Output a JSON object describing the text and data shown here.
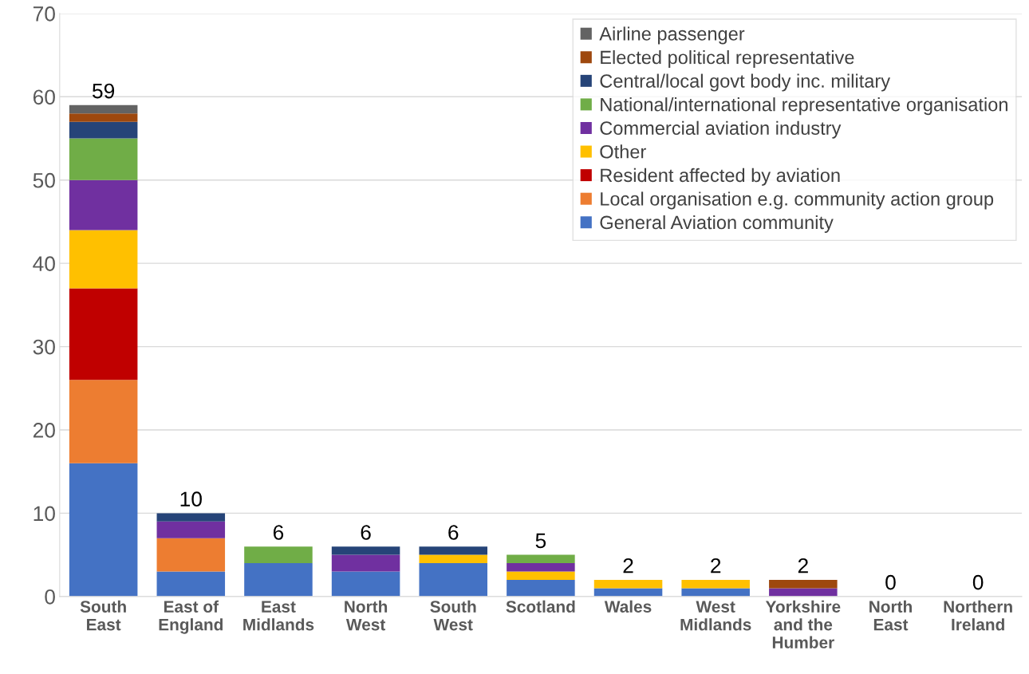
{
  "chart_data": {
    "type": "bar",
    "stacked": true,
    "categories": [
      "South\nEast",
      "East of\nEngland",
      "East\nMidlands",
      "North\nWest",
      "South\nWest",
      "Scotland",
      "Wales",
      "West\nMidlands",
      "Yorkshire\nand the\nHumber",
      "North\nEast",
      "Northern\nIreland"
    ],
    "series": [
      {
        "name": "General Aviation community",
        "color": "#4472c4",
        "values": [
          16,
          3,
          4,
          3,
          4,
          2,
          1,
          1,
          0,
          0,
          0
        ]
      },
      {
        "name": "Local organisation e.g. community action group",
        "color": "#ed7d31",
        "values": [
          10,
          4,
          0,
          0,
          0,
          0,
          0,
          0,
          0,
          0,
          0
        ]
      },
      {
        "name": "Resident affected by aviation",
        "color": "#c00000",
        "values": [
          11,
          0,
          0,
          0,
          0,
          0,
          0,
          0,
          0,
          0,
          0
        ]
      },
      {
        "name": "Other",
        "color": "#ffc000",
        "values": [
          7,
          0,
          0,
          0,
          1,
          1,
          1,
          1,
          0,
          0,
          0
        ]
      },
      {
        "name": "Commercial aviation industry",
        "color": "#7030a0",
        "values": [
          6,
          2,
          0,
          2,
          0,
          1,
          0,
          0,
          1,
          0,
          0
        ]
      },
      {
        "name": "National/international representative organisation",
        "color": "#70ad47",
        "values": [
          5,
          0,
          2,
          0,
          0,
          1,
          0,
          0,
          0,
          0,
          0
        ]
      },
      {
        "name": "Central/local govt body inc. military",
        "color": "#264478",
        "values": [
          2,
          1,
          0,
          1,
          1,
          0,
          0,
          0,
          0,
          0,
          0
        ]
      },
      {
        "name": "Elected political representative",
        "color": "#9e480e",
        "values": [
          1,
          0,
          0,
          0,
          0,
          0,
          0,
          0,
          1,
          0,
          0
        ]
      },
      {
        "name": "Airline passenger",
        "color": "#636363",
        "values": [
          1,
          0,
          0,
          0,
          0,
          0,
          0,
          0,
          0,
          0,
          0
        ]
      }
    ],
    "totals": [
      "59",
      "10",
      "6",
      "6",
      "6",
      "5",
      "2",
      "2",
      "2",
      "0",
      "0"
    ],
    "ylim": [
      0,
      70
    ],
    "yticks": [
      0,
      10,
      20,
      30,
      40,
      50,
      60,
      70
    ],
    "grid": "y",
    "legend": "top right"
  }
}
